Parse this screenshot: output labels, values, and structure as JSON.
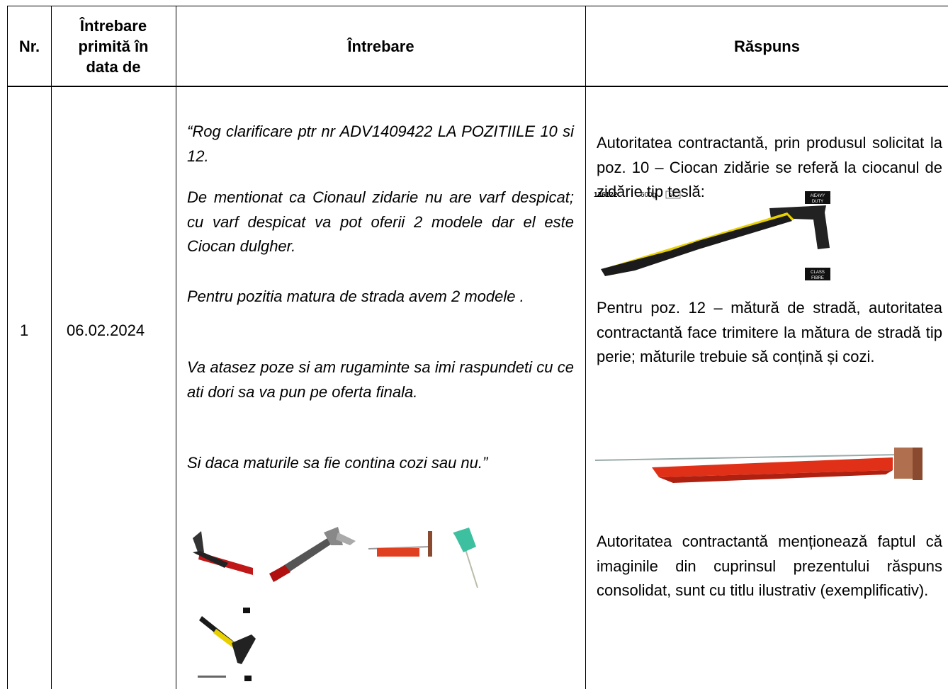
{
  "table": {
    "header": [
      "Nr.",
      "Întrebare primită în data de",
      "Întrebare",
      "Răspuns"
    ],
    "rows": [
      {
        "nr": "1",
        "date": "06.02.2024",
        "question": [
          "“Rog clarificare ptr nr ADV1409422 LA POZITIILE 10 si 12.",
          "De mentionat ca Cionaul zidarie nu are varf despicat; cu varf despicat va pot oferii 2 modele dar el este Ciocan dulgher.",
          "Pentru pozitia matura de strada avem 2 modele .",
          "Va atasez poze si am rugaminte sa imi raspundeti cu ce ati dori sa va pun pe oferta finala.",
          "Si daca maturile sa fie contina cozi sau nu.”"
        ],
        "answer": [
          "Autoritatea contractantă, prin produsul solicitat la poz. 10 – Ciocan zidărie se referă la ciocanul de zidărie tip teslă:",
          "Pentru poz. 12 – mătură de stradă, autoritatea contractantă face trimitere la mătura de stradă tip perie; măturile trebuie să conțină și cozi.",
          "Autoritatea contractantă menționează faptul că imaginile din cuprinsul prezentului răspuns consolidat, sunt cu titlu ilustrativ (exemplificativ)."
        ],
        "hammer_image_labels": [
          "136122",
          "600g",
          "24",
          "HEAVY",
          "DUTY",
          "CLASS",
          "FIBRE"
        ]
      }
    ]
  }
}
